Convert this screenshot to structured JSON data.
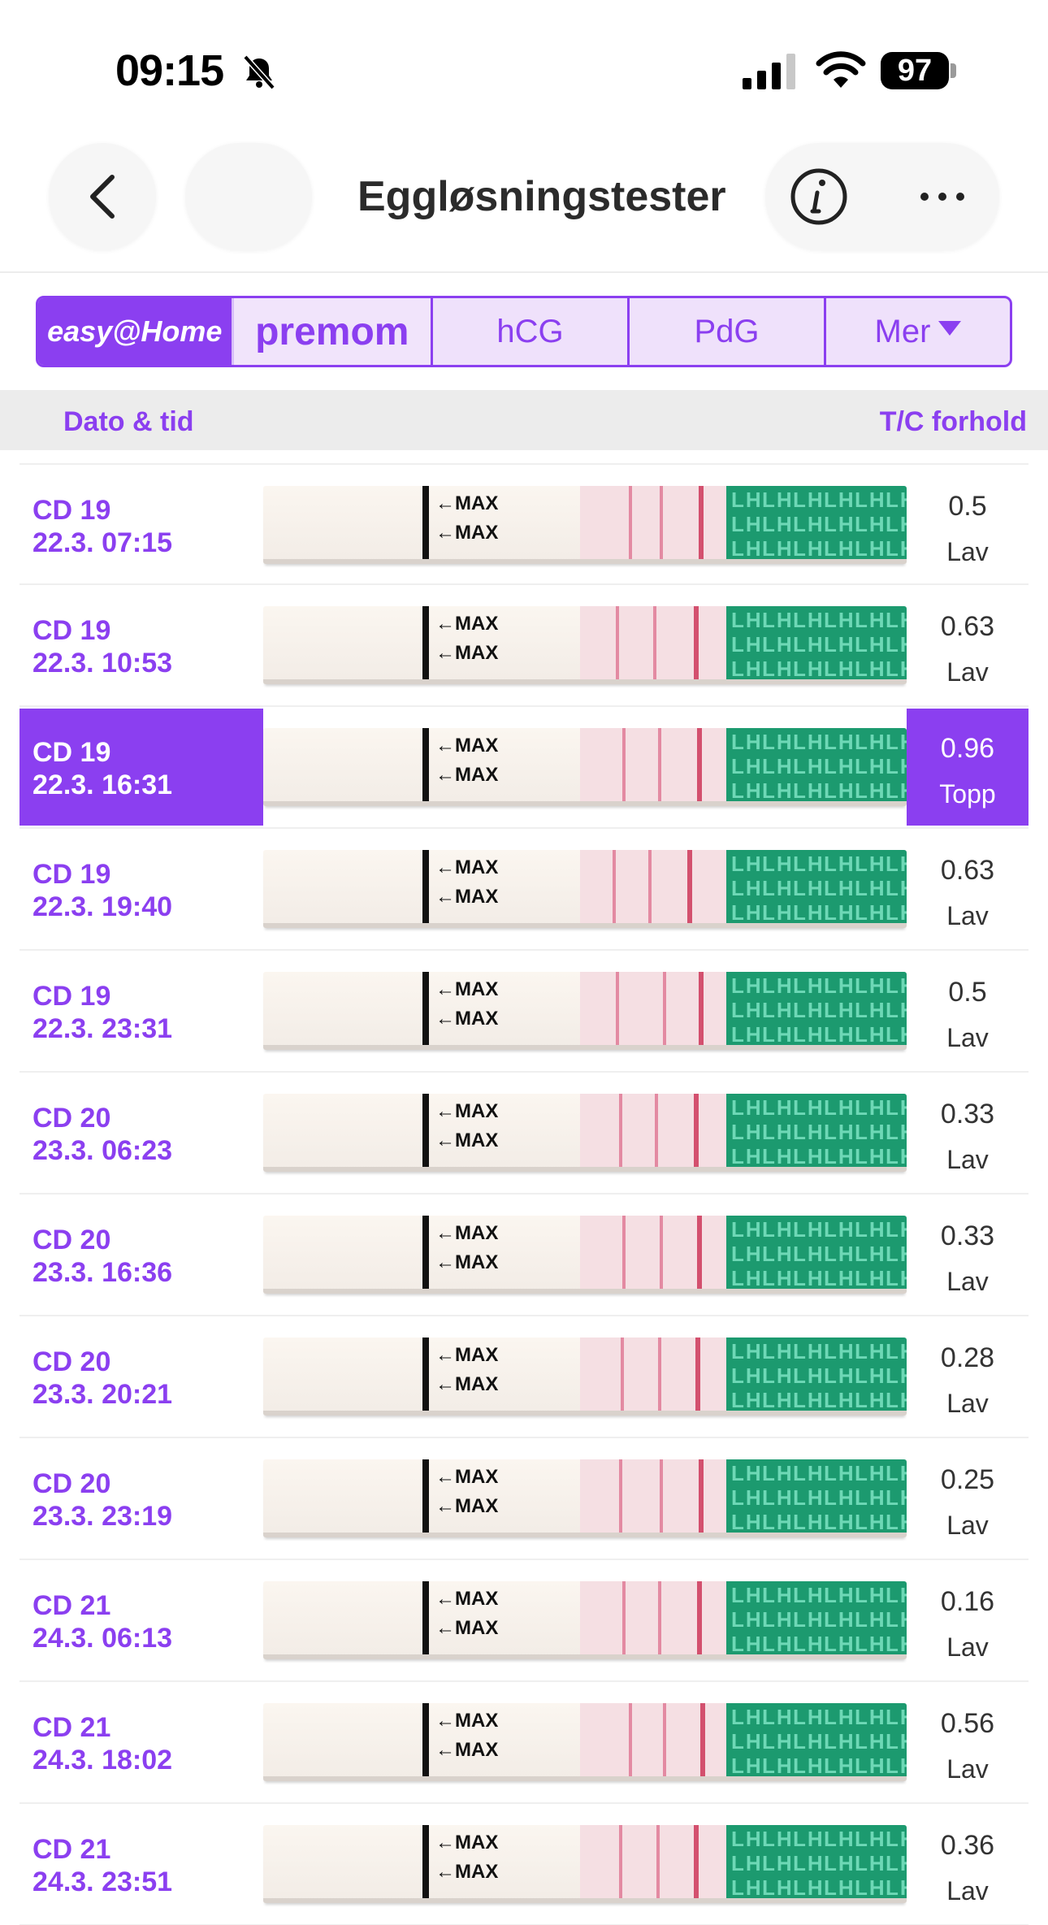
{
  "status_bar": {
    "time": "09:15",
    "battery": "97",
    "icons": [
      "bell-slash-icon",
      "signal-icon",
      "wifi-icon",
      "battery-icon"
    ]
  },
  "nav": {
    "title": "Eggløsningstester",
    "icons": [
      "back-chevron-icon",
      "info-icon",
      "more-icon"
    ]
  },
  "tabs": {
    "brand_left": "easy@Home",
    "brand_right": "premom",
    "hcg": "hCG",
    "pdg": "PdG",
    "more": "Mer"
  },
  "table": {
    "header_date": "Dato & tid",
    "header_ratio": "T/C forhold",
    "strip_label": "MAX",
    "rows": [
      {
        "cd": "CD 19",
        "datetime": "22.3. 07:15",
        "ratio": "0.5",
        "level": "Lav",
        "selected": false
      },
      {
        "cd": "CD 19",
        "datetime": "22.3. 10:53",
        "ratio": "0.63",
        "level": "Lav",
        "selected": false
      },
      {
        "cd": "CD 19",
        "datetime": "22.3. 16:31",
        "ratio": "0.96",
        "level": "Topp",
        "selected": true
      },
      {
        "cd": "CD 19",
        "datetime": "22.3. 19:40",
        "ratio": "0.63",
        "level": "Lav",
        "selected": false
      },
      {
        "cd": "CD 19",
        "datetime": "22.3. 23:31",
        "ratio": "0.5",
        "level": "Lav",
        "selected": false
      },
      {
        "cd": "CD 20",
        "datetime": "23.3. 06:23",
        "ratio": "0.33",
        "level": "Lav",
        "selected": false
      },
      {
        "cd": "CD 20",
        "datetime": "23.3. 16:36",
        "ratio": "0.33",
        "level": "Lav",
        "selected": false
      },
      {
        "cd": "CD 20",
        "datetime": "23.3. 20:21",
        "ratio": "0.28",
        "level": "Lav",
        "selected": false
      },
      {
        "cd": "CD 20",
        "datetime": "23.3. 23:19",
        "ratio": "0.25",
        "level": "Lav",
        "selected": false
      },
      {
        "cd": "CD 21",
        "datetime": "24.3. 06:13",
        "ratio": "0.16",
        "level": "Lav",
        "selected": false
      },
      {
        "cd": "CD 21",
        "datetime": "24.3. 18:02",
        "ratio": "0.56",
        "level": "Lav",
        "selected": false
      },
      {
        "cd": "CD 21",
        "datetime": "24.3. 23:51",
        "ratio": "0.36",
        "level": "Lav",
        "selected": false
      }
    ]
  },
  "colors": {
    "accent": "#8b3ff0",
    "tab_bg": "#efe1fb",
    "header_bg": "#ececec",
    "strip_green": "#1c9a6f",
    "test_line": "#d3506e"
  }
}
